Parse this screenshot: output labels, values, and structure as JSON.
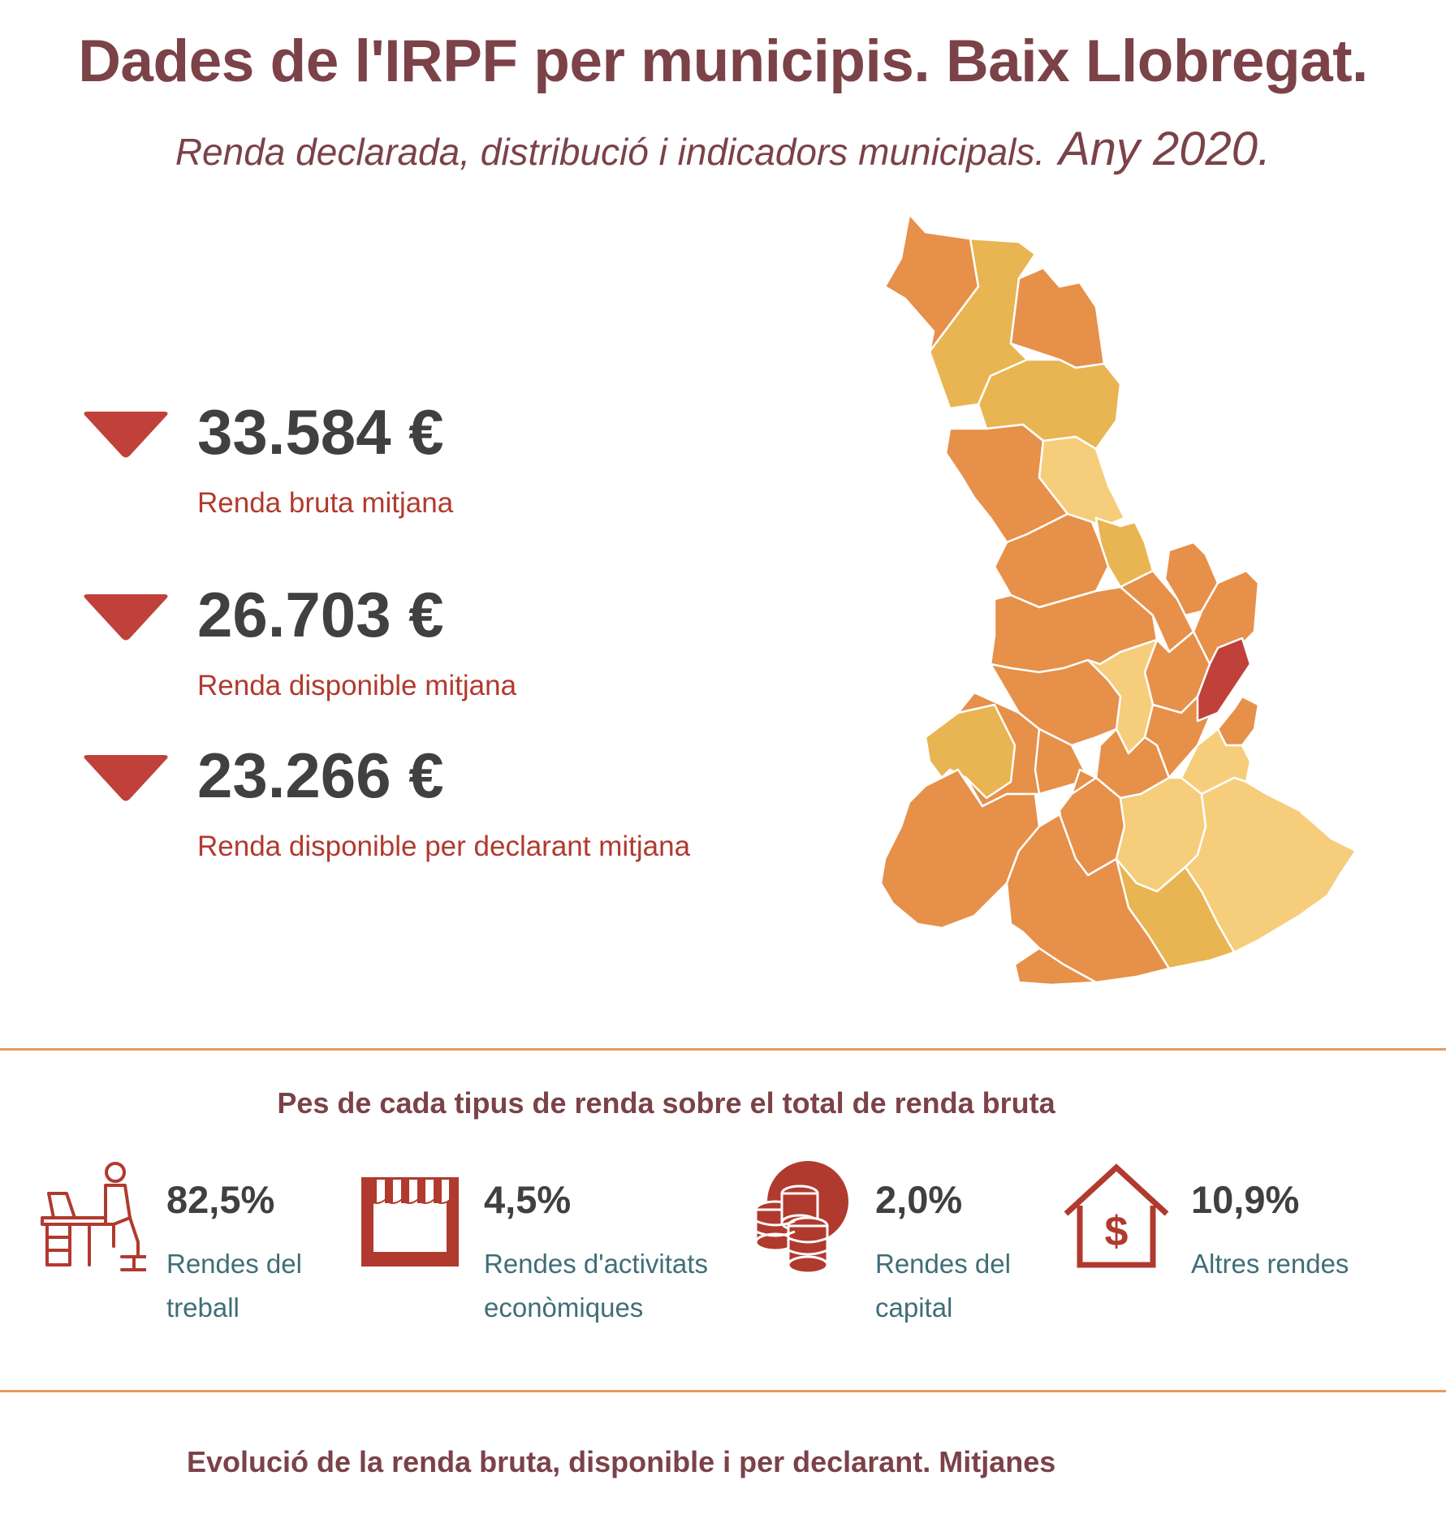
{
  "header": {
    "title": "Dades de l'IRPF per municipis. Baix Llobregat.",
    "subtitle": "Renda declarada, distribució i indicadors municipals.",
    "year": "Any 2020."
  },
  "kpis": [
    {
      "value": "33.584 €",
      "label": "Renda bruta mitjana",
      "trend": "down",
      "icon": "down-triangle-icon"
    },
    {
      "value": "26.703 €",
      "label": "Renda disponible mitjana",
      "trend": "down",
      "icon": "down-triangle-icon"
    },
    {
      "value": "23.266 €",
      "label": "Renda disponible per declarant mitjana",
      "trend": "down",
      "icon": "down-triangle-icon"
    }
  ],
  "map": {
    "region": "Baix Llobregat",
    "colors": {
      "light": "#f6cd7a",
      "mid": "#e8b552",
      "orange": "#e6904a",
      "highlight": "#c0413a"
    }
  },
  "income_section": {
    "title": "Pes de cada tipus de renda sobre el total de renda bruta",
    "items": [
      {
        "pct": "82,5%",
        "name": "Rendes del treball",
        "icon": "office-worker-icon"
      },
      {
        "pct": "4,5%",
        "name": "Rendes d'activitats econòmiques",
        "icon": "shop-awning-icon"
      },
      {
        "pct": "2,0%",
        "name": "Rendes del capital",
        "icon": "coins-icon"
      },
      {
        "pct": "10,9%",
        "name": "Altres rendes",
        "icon": "house-dollar-icon"
      }
    ]
  },
  "evolution_section": {
    "title": "Evolució de la renda bruta, disponible i per declarant. Mitjanes"
  },
  "colors": {
    "title": "#7b4248",
    "accent_red": "#b13a2e",
    "arrow_red": "#c0413a",
    "value_gray": "#404040",
    "income_label": "#3f6e78",
    "divider": "#e79a5c"
  }
}
